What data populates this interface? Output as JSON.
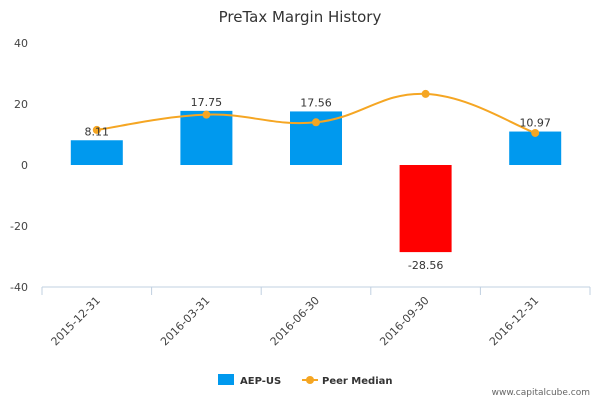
{
  "chart_data": {
    "type": "bar",
    "title": "PreTax Margin History",
    "categories": [
      "2015-12-31",
      "2016-03-31",
      "2016-06-30",
      "2016-09-30",
      "2016-12-31"
    ],
    "series": [
      {
        "name": "AEP-US",
        "type": "bar",
        "values": [
          8.11,
          17.75,
          17.56,
          -28.56,
          10.97
        ],
        "labels": [
          "8.11",
          "17.75",
          "17.56",
          "-28.56",
          "10.97"
        ],
        "color": "#0099ee",
        "negative_color": "#ff0000"
      },
      {
        "name": "Peer Median",
        "type": "line",
        "values": [
          11.5,
          16.5,
          14.0,
          23.3,
          10.5
        ],
        "color": "#f5a623"
      }
    ],
    "ylim": [
      -40,
      40
    ],
    "yticks": [
      "-40",
      "-20",
      "0",
      "20",
      "40"
    ],
    "legend_position": "bottom",
    "grid": false
  },
  "watermark": "www.capitalcube.com"
}
